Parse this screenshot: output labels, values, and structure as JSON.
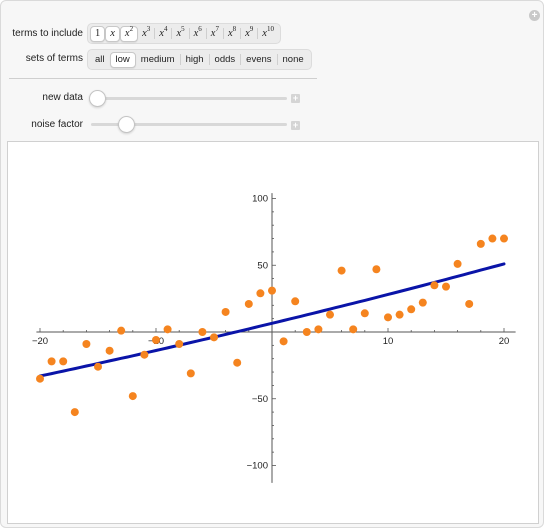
{
  "controls": {
    "terms_label": "terms to include",
    "terms": [
      {
        "base": "1",
        "exp": "",
        "active": true
      },
      {
        "base": "x",
        "exp": "",
        "active": true
      },
      {
        "base": "x",
        "exp": "2",
        "active": true
      },
      {
        "base": "x",
        "exp": "3",
        "active": false
      },
      {
        "base": "x",
        "exp": "4",
        "active": false
      },
      {
        "base": "x",
        "exp": "5",
        "active": false
      },
      {
        "base": "x",
        "exp": "6",
        "active": false
      },
      {
        "base": "x",
        "exp": "7",
        "active": false
      },
      {
        "base": "x",
        "exp": "8",
        "active": false
      },
      {
        "base": "x",
        "exp": "9",
        "active": false
      },
      {
        "base": "x",
        "exp": "10",
        "active": false
      }
    ],
    "sets_label": "sets of terms",
    "sets": [
      {
        "label": "all",
        "active": false
      },
      {
        "label": "low",
        "active": true
      },
      {
        "label": "medium",
        "active": false
      },
      {
        "label": "high",
        "active": false
      },
      {
        "label": "odds",
        "active": false
      },
      {
        "label": "evens",
        "active": false
      },
      {
        "label": "none",
        "active": false
      }
    ],
    "new_data_label": "new data",
    "new_data_value": 0.0,
    "noise_label": "noise factor",
    "noise_value": 0.16,
    "plus_symbol": "+",
    "reset_symbol": "+"
  },
  "colors": {
    "points": "#f5841f",
    "fit": "#0a14a8",
    "axis": "#555555"
  },
  "chart_data": {
    "type": "scatter",
    "x_ticks": [
      -20,
      -10,
      10,
      20
    ],
    "x_tick_labels": [
      "−20",
      "−10",
      "10",
      "20"
    ],
    "y_ticks": [
      -100,
      -50,
      50,
      100
    ],
    "y_tick_labels": [
      "−100",
      "−50",
      "50",
      "100"
    ],
    "xlim": [
      -21,
      21
    ],
    "ylim": [
      -110,
      110
    ],
    "points": [
      [
        -20,
        -35
      ],
      [
        -19,
        -22
      ],
      [
        -18,
        -22
      ],
      [
        -17,
        -60
      ],
      [
        -16,
        -9
      ],
      [
        -15,
        -26
      ],
      [
        -14,
        -14
      ],
      [
        -13,
        1
      ],
      [
        -12,
        -48
      ],
      [
        -11,
        -17
      ],
      [
        -10,
        -6
      ],
      [
        -9,
        2
      ],
      [
        -8,
        -9
      ],
      [
        -7,
        -31
      ],
      [
        -6,
        0
      ],
      [
        -5,
        -4
      ],
      [
        -4,
        15
      ],
      [
        -3,
        -23
      ],
      [
        -2,
        21
      ],
      [
        -1,
        29
      ],
      [
        0,
        31
      ],
      [
        1,
        -7
      ],
      [
        2,
        23
      ],
      [
        3,
        0
      ],
      [
        4,
        2
      ],
      [
        5,
        13
      ],
      [
        6,
        46
      ],
      [
        7,
        2
      ],
      [
        8,
        14
      ],
      [
        9,
        47
      ],
      [
        10,
        11
      ],
      [
        11,
        13
      ],
      [
        12,
        17
      ],
      [
        13,
        22
      ],
      [
        14,
        35
      ],
      [
        15,
        34
      ],
      [
        16,
        51
      ],
      [
        17,
        21
      ],
      [
        18,
        66
      ],
      [
        19,
        70
      ],
      [
        20,
        70
      ]
    ],
    "fit": {
      "type": "line",
      "coefficients": {
        "c0": 6.5,
        "c1": 2.1,
        "c2": 0.0063
      },
      "x_range": [
        -20,
        20
      ]
    }
  }
}
